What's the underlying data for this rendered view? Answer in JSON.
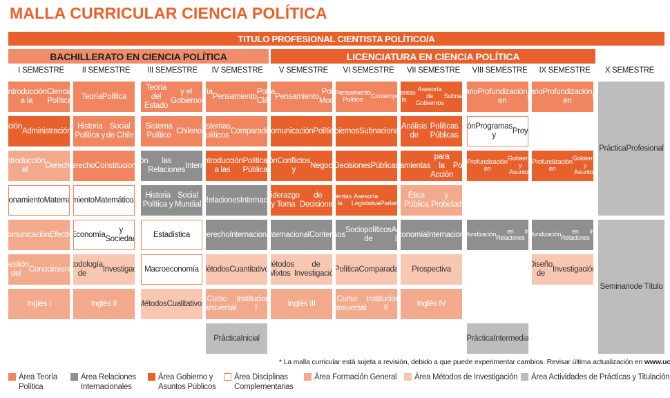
{
  "title": "MALLA CURRICULAR CIENCIA POLÍTICA",
  "header": {
    "degree": "TITULO PROFESIONAL CIENTISTA POLÍTICO/A",
    "bachillerato": "BACHILLERATO EN CIENCIA POLÍTICA",
    "licenciatura": "LICENCIATURA EN CIENCIA POLÍTICA"
  },
  "semesters": [
    "I SEMESTRE",
    "II SEMESTRE",
    "III SEMESTRE",
    "IV SEMESTRE",
    "V SEMESTRE",
    "VI SEMESTRE",
    "VII SEMESTRE",
    "VIII SEMESTRE",
    "IX SEMESTRE",
    "X SEMESTRE"
  ],
  "courses": {
    "s1": [
      "Introducción a la|Ciencia Política",
      "Introducción a la|Administración|Pública Chilena",
      "Introducción al|Derecho",
      "Razonamiento|Matemático",
      "Comunicación|Efectiva",
      "Gestión del|Conocimiento",
      "Inglés I"
    ],
    "s2": [
      "Teoría|Política",
      "Historia Política y|Social de Chile",
      "Derecho|Constitucional",
      "Razonamiento|Matemático|Aplicado",
      "Economía|y Sociedad",
      "Metodología de|Investigación",
      "Inglés II"
    ],
    "s3": [
      "Teoría del Estado|y el Gobierno",
      "Sistema Político|Chileno",
      "Introducción a|las Relaciones|Internacionales",
      "Historia Política y|Social Mundial",
      "Estadística",
      "Macroeconomía",
      "Métodos|Cualitativos"
    ],
    "s4": [
      "Teoría y|Pensamiento|Político Clásico",
      "Sistemas Políticos|Comparados",
      "Introducción a las|Políticas Públicas",
      "Teoría de las|Relaciones|Internacionales",
      "Derecho|Internacional",
      "Métodos|Cuantitativos",
      "Curso Transversal|Institucional I",
      "Práctica|Inicial"
    ],
    "s5": [
      "Teoría y|Pensamiento|Político Moderno",
      "Comunicación|Política",
      "Gestión de|Conflictos y|Negociación",
      "Liderazgo y Toma|de Decisiones",
      "Sistema|Internacional|Contemporáneo",
      "Métodos Mixtos|de Investigación",
      "Inglés III"
    ],
    "s6": [
      "Teoría y|Pensamiento Político|Contemporáneo",
      "Gobiernos|Subnacionales",
      "Decisiones|Públicas",
      "Herramientas para la|Asesoría Legislativa|y Parlamentaria",
      "Procesos|Sociopolíticos de|América Latina",
      "Política|Comparada",
      "Curso Transversal|Institucional II"
    ],
    "s7": [
      "Herramientas para la|Asesoría de Gobiernos|Subnacionales",
      "Análisis de|Políticas Públicas",
      "Herramientas|para la Acción|Política",
      "Ética Pública|y Probidad",
      "Economía|Internacional",
      "Prospectiva",
      "Inglés IV"
    ],
    "s8": [
      "Seminario de|Profundización en|Teoría Política I",
      "Gestión de|Programas y|Proyectos",
      "Seminario de|Profundización en|Gobierno y Asuntos|Públicos I",
      "Seminario de|Profundización|en Relaciones|Internacionales I",
      "Práctica|Intermedia"
    ],
    "s9": [
      "Seminario de|Profundización en|Teoría Política II",
      "Seminario de|Profundización en|Gobierno y Asuntos|Públicos II",
      "Seminario de|Profundización|en Relaciones|Internacionales II",
      "Diseño de|Investigación"
    ],
    "s10": [
      "Práctica|Profesional",
      "Seminario|de Título"
    ]
  },
  "note": {
    "text": "* La malla curricular está sujeta a revisión, debido a que puede experimentar cambios. Revisar última actualización en ",
    "url": "www.ucentral.cl"
  },
  "legend": [
    {
      "label": "Área Teoría|Política",
      "color": "#f0855f"
    },
    {
      "label": "Área Relaciones|Internacionales",
      "color": "#8f8f8f"
    },
    {
      "label": "Área Gobierno y|Asuntos Públicos",
      "color": "#e8612c"
    },
    {
      "label": "Área Disciplinas|Complementarias",
      "color": "#ffffff"
    },
    {
      "label": "Área Formación General",
      "color": "#f3a98b"
    },
    {
      "label": "Área Métodos de Investigación",
      "color": "#f8c7b2"
    },
    {
      "label": "Área Actividades de Prácticas y Titulación",
      "color": "#bdbdbd"
    }
  ]
}
